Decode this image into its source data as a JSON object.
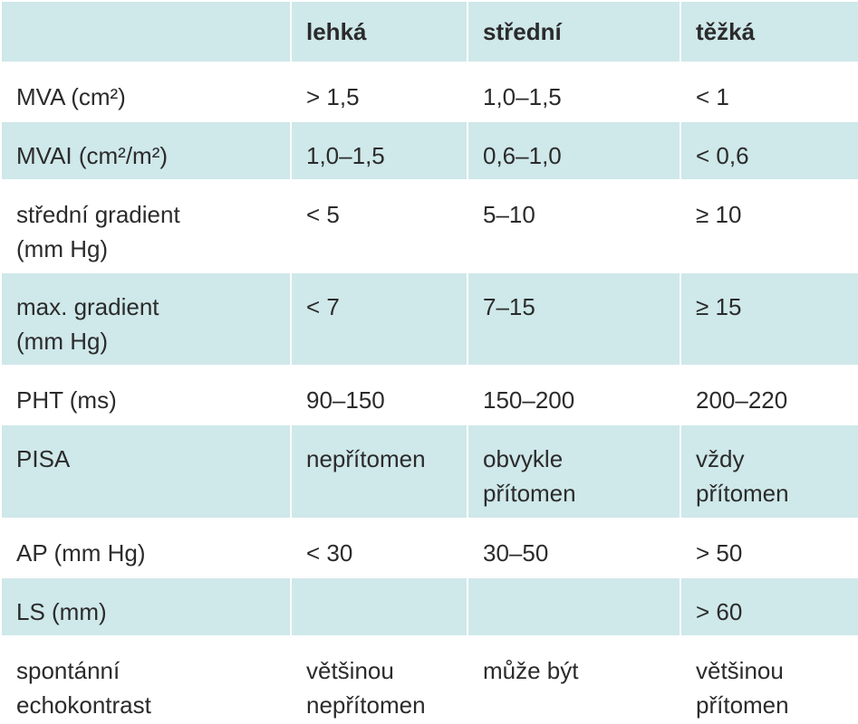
{
  "table": {
    "header": [
      null,
      "lehká",
      "střední",
      "těžká"
    ],
    "rows": [
      [
        "MVA (cm²)",
        "> 1,5",
        "1,0–1,5",
        "< 1"
      ],
      [
        "MVAI (cm²/m²)",
        "1,0–1,5",
        "0,6–1,0",
        "< 0,6"
      ],
      [
        "střední gradient\n(mm Hg)",
        "< 5",
        "5–10",
        "≥ 10"
      ],
      [
        "max. gradient\n(mm Hg)",
        "< 7",
        "7–15",
        "≥ 15"
      ],
      [
        "PHT (ms)",
        "90–150",
        "150–200",
        "200–220"
      ],
      [
        "PISA",
        "nepřítomen",
        "obvykle\npřítomen",
        "vždy\npřítomen"
      ],
      [
        "AP (mm Hg)",
        "< 30",
        "30–50",
        "> 50"
      ],
      [
        "LS (mm)",
        null,
        null,
        "> 60"
      ],
      [
        "spontánní\nechokontrast",
        "většinou\nnepřítomen",
        "může být",
        "většinou\npřítomen"
      ]
    ]
  }
}
